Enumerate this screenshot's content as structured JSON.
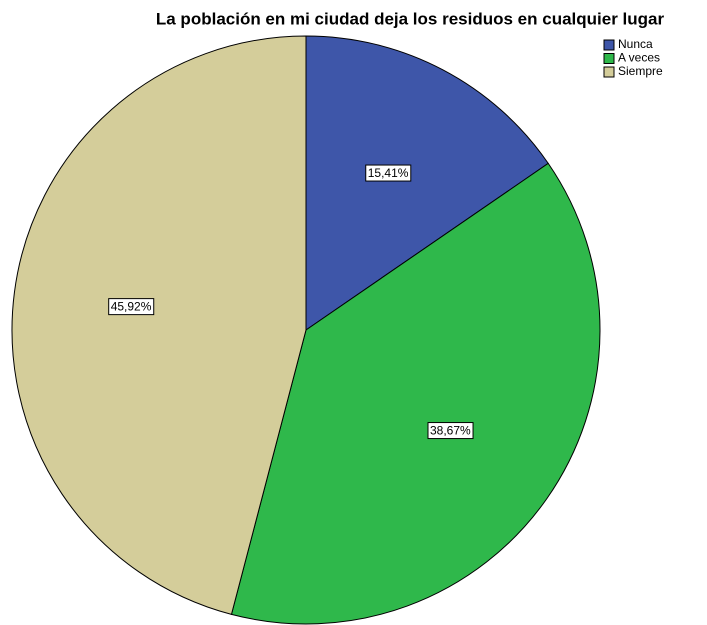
{
  "chart_data": {
    "type": "pie",
    "title": "La población en mi ciudad deja los residuos en cualquier lugar",
    "categories": [
      "Nunca",
      "A veces",
      "Siempre"
    ],
    "values": [
      15.41,
      38.67,
      45.92
    ],
    "value_labels": [
      "15,41%",
      "38,67%",
      "45,92%"
    ],
    "colors": [
      "#3e56a9",
      "#2fb84b",
      "#d4cd9a"
    ]
  }
}
